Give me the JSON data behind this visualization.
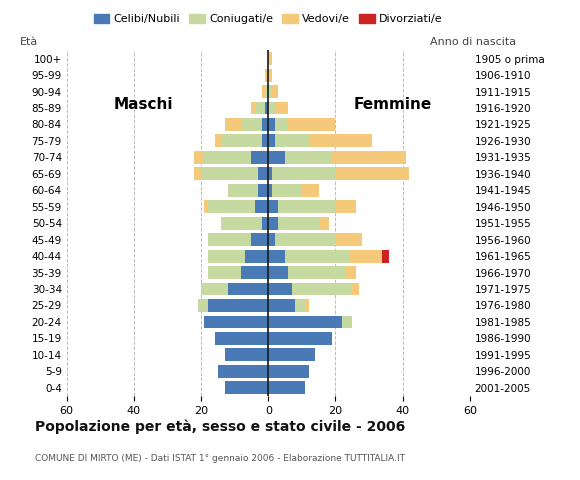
{
  "age_groups": [
    "0-4",
    "5-9",
    "10-14",
    "15-19",
    "20-24",
    "25-29",
    "30-34",
    "35-39",
    "40-44",
    "45-49",
    "50-54",
    "55-59",
    "60-64",
    "65-69",
    "70-74",
    "75-79",
    "80-84",
    "85-89",
    "90-94",
    "95-99",
    "100+"
  ],
  "birth_years": [
    "2001-2005",
    "1996-2000",
    "1991-1995",
    "1986-1990",
    "1981-1985",
    "1976-1980",
    "1971-1975",
    "1966-1970",
    "1961-1965",
    "1956-1960",
    "1951-1955",
    "1946-1950",
    "1941-1945",
    "1936-1940",
    "1931-1935",
    "1926-1930",
    "1921-1925",
    "1916-1920",
    "1911-1915",
    "1906-1910",
    "1905 o prima"
  ],
  "maschi_celibe": [
    13,
    15,
    13,
    16,
    19,
    18,
    12,
    8,
    7,
    5,
    2,
    4,
    3,
    3,
    5,
    2,
    2,
    1,
    0,
    0,
    0
  ],
  "maschi_coniugato": [
    0,
    0,
    0,
    0,
    0,
    3,
    8,
    10,
    11,
    13,
    12,
    14,
    9,
    17,
    14,
    12,
    6,
    3,
    1,
    0,
    0
  ],
  "maschi_vedovo": [
    0,
    0,
    0,
    0,
    0,
    0,
    0,
    0,
    0,
    0,
    0,
    1,
    0,
    2,
    3,
    2,
    5,
    1,
    1,
    1,
    0
  ],
  "maschi_divorziato": [
    0,
    0,
    0,
    0,
    0,
    0,
    0,
    0,
    0,
    0,
    0,
    0,
    0,
    0,
    0,
    0,
    0,
    0,
    0,
    0,
    0
  ],
  "femmine_celibe": [
    11,
    12,
    14,
    19,
    22,
    8,
    7,
    6,
    5,
    2,
    3,
    3,
    1,
    1,
    5,
    2,
    2,
    0,
    0,
    0,
    0
  ],
  "femmine_coniugato": [
    0,
    0,
    0,
    0,
    3,
    3,
    18,
    17,
    19,
    18,
    12,
    17,
    9,
    19,
    14,
    10,
    4,
    2,
    1,
    0,
    0
  ],
  "femmine_vedovo": [
    0,
    0,
    0,
    0,
    0,
    1,
    2,
    3,
    10,
    8,
    3,
    6,
    5,
    22,
    22,
    19,
    14,
    4,
    2,
    1,
    1
  ],
  "femmine_divorziato": [
    0,
    0,
    0,
    0,
    0,
    0,
    0,
    0,
    2,
    0,
    0,
    0,
    0,
    0,
    0,
    0,
    0,
    0,
    0,
    0,
    0
  ],
  "color_celibe": "#4a7ab5",
  "color_coniugato": "#c5d9a0",
  "color_vedovo": "#f5c97a",
  "color_divorziato": "#cc2222",
  "xlim": 60,
  "title": "Popolazione per età, sesso e stato civile - 2006",
  "subtitle": "COMUNE DI MIRTO (ME) - Dati ISTAT 1° gennaio 2006 - Elaborazione TUTTITALIA.IT",
  "legend_labels": [
    "Celibi/Nubili",
    "Coniugati/e",
    "Vedovi/e",
    "Divorziati/e"
  ],
  "label_eta": "Età",
  "label_anno": "Anno di nascita",
  "label_maschi": "Maschi",
  "label_femmine": "Femmine",
  "bg_color": "#ffffff",
  "grid_color": "#bbbbbb"
}
